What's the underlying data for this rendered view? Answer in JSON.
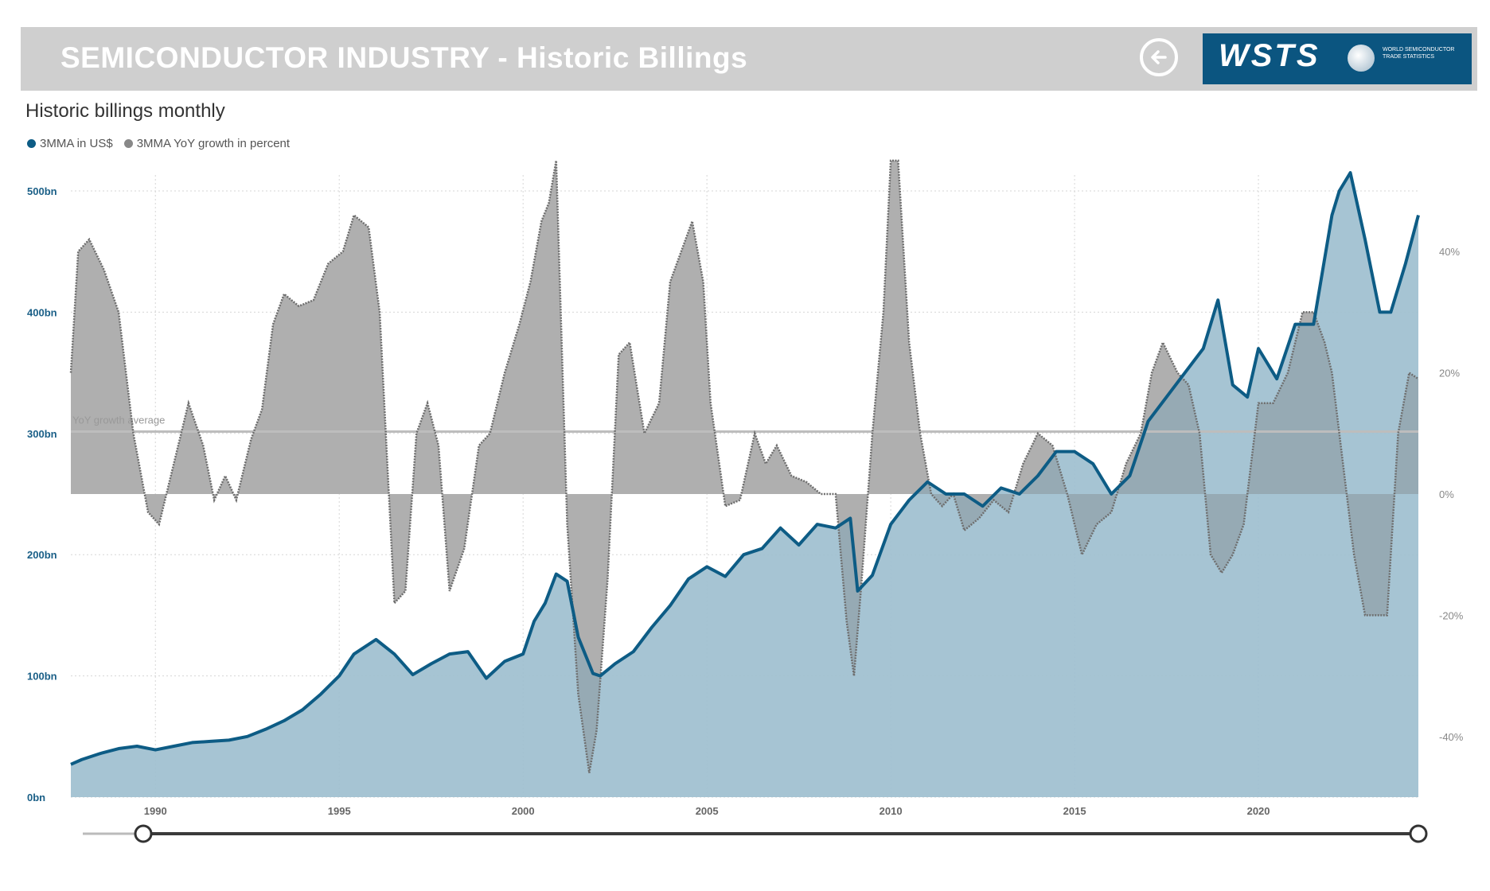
{
  "header": {
    "title": "SEMICONDUCTOR INDUSTRY - Historic Billings",
    "logo_text": "WSTS",
    "logo_subtext": "WORLD SEMICONDUCTOR TRADE STATISTICS"
  },
  "subtitle": "Historic billings monthly",
  "legend": {
    "series1": "3MMA in US$",
    "series2": "3MMA YoY growth in percent"
  },
  "colors": {
    "blue_line": "#0d5c85",
    "blue_fill": "#9ebfcf",
    "gray_line": "#6e6e6e",
    "gray_fill": "#c8c8c8",
    "average": "#bdbdbd"
  },
  "chart_data": {
    "type": "line",
    "title": "Historic billings monthly",
    "xlabel": "",
    "ylabel_left": "3MMA in US$",
    "ylabel_right": "3MMA YoY growth in percent",
    "x_range": [
      1987.7,
      2024.35
    ],
    "y_left_range": [
      0,
      500
    ],
    "y_right_range": [
      -50,
      50
    ],
    "x_ticks": [
      "1990",
      "1995",
      "2000",
      "2005",
      "2010",
      "2015",
      "2020"
    ],
    "y_left_ticks": [
      "0bn",
      "100bn",
      "200bn",
      "300bn",
      "400bn",
      "500bn"
    ],
    "y_right_ticks": [
      "-40%",
      "-20%",
      "0%",
      "20%",
      "40%"
    ],
    "annotation": "YoY growth average",
    "average_growth_pct": 10.3,
    "series": [
      {
        "name": "3MMA in US$",
        "axis": "left",
        "unit": "bn",
        "x": [
          1987.7,
          1988.0,
          1988.5,
          1989.0,
          1989.5,
          1990.0,
          1990.5,
          1991.0,
          1991.5,
          1992.0,
          1992.5,
          1993.0,
          1993.5,
          1994.0,
          1994.5,
          1995.0,
          1995.4,
          1995.6,
          1996.0,
          1996.5,
          1997.0,
          1997.5,
          1998.0,
          1998.5,
          1999.0,
          1999.5,
          2000.0,
          2000.3,
          2000.6,
          2000.9,
          2001.2,
          2001.5,
          2001.9,
          2002.1,
          2002.5,
          2003.0,
          2003.5,
          2004.0,
          2004.5,
          2005.0,
          2005.5,
          2006.0,
          2006.5,
          2007.0,
          2007.5,
          2008.0,
          2008.5,
          2008.9,
          2009.1,
          2009.5,
          2010.0,
          2010.5,
          2011.0,
          2011.5,
          2012.0,
          2012.5,
          2013.0,
          2013.5,
          2014.0,
          2014.5,
          2015.0,
          2015.5,
          2016.0,
          2016.5,
          2017.0,
          2017.5,
          2018.0,
          2018.5,
          2018.9,
          2019.3,
          2019.7,
          2020.0,
          2020.5,
          2021.0,
          2021.5,
          2022.0,
          2022.2,
          2022.5,
          2022.9,
          2023.3,
          2023.6,
          2024.0,
          2024.35
        ],
        "values": [
          27,
          31,
          36,
          40,
          42,
          39,
          42,
          45,
          46,
          47,
          50,
          56,
          63,
          72,
          85,
          100,
          118,
          122,
          130,
          118,
          101,
          110,
          118,
          120,
          98,
          112,
          118,
          145,
          160,
          184,
          178,
          132,
          102,
          100,
          110,
          120,
          140,
          158,
          180,
          190,
          182,
          200,
          205,
          222,
          208,
          225,
          222,
          230,
          170,
          183,
          225,
          245,
          260,
          250,
          250,
          240,
          255,
          250,
          265,
          285,
          285,
          275,
          250,
          265,
          310,
          330,
          350,
          370,
          410,
          340,
          330,
          370,
          345,
          390,
          390,
          480,
          500,
          515,
          460,
          400,
          400,
          440,
          480
        ]
      },
      {
        "name": "3MMA YoY growth in percent",
        "axis": "right",
        "unit": "%",
        "x": [
          1987.7,
          1987.9,
          1988.2,
          1988.6,
          1989.0,
          1989.4,
          1989.8,
          1990.1,
          1990.5,
          1990.9,
          1991.3,
          1991.6,
          1991.9,
          1992.2,
          1992.6,
          1992.9,
          1993.2,
          1993.5,
          1993.9,
          1994.3,
          1994.7,
          1995.1,
          1995.4,
          1995.8,
          1996.1,
          1996.5,
          1996.8,
          1997.1,
          1997.4,
          1997.7,
          1998.0,
          1998.4,
          1998.8,
          1999.1,
          1999.5,
          1999.9,
          2000.2,
          2000.5,
          2000.7,
          2000.9,
          2001.2,
          2001.5,
          2001.8,
          2002.0,
          2002.3,
          2002.6,
          2002.9,
          2003.3,
          2003.7,
          2004.0,
          2004.3,
          2004.6,
          2004.9,
          2005.1,
          2005.5,
          2005.9,
          2006.3,
          2006.6,
          2006.9,
          2007.3,
          2007.7,
          2008.1,
          2008.5,
          2008.8,
          2009.0,
          2009.2,
          2009.5,
          2009.8,
          2010.0,
          2010.2,
          2010.5,
          2010.8,
          2011.1,
          2011.4,
          2011.7,
          2012.0,
          2012.4,
          2012.8,
          2013.2,
          2013.6,
          2014.0,
          2014.4,
          2014.8,
          2015.2,
          2015.6,
          2016.0,
          2016.4,
          2016.8,
          2017.1,
          2017.4,
          2017.8,
          2018.1,
          2018.4,
          2018.7,
          2019.0,
          2019.3,
          2019.6,
          2020.0,
          2020.4,
          2020.8,
          2021.2,
          2021.5,
          2021.8,
          2022.0,
          2022.3,
          2022.6,
          2022.9,
          2023.2,
          2023.5,
          2023.8,
          2024.1,
          2024.35
        ],
        "values": [
          20,
          40,
          42,
          37,
          30,
          10,
          -3,
          -5,
          5,
          15,
          8,
          -1,
          3,
          -1,
          9,
          14,
          28,
          33,
          31,
          32,
          38,
          40,
          46,
          44,
          30,
          -18,
          -16,
          10,
          15,
          8,
          -16,
          -9,
          8,
          10,
          20,
          28,
          35,
          45,
          48,
          55,
          -5,
          -33,
          -46,
          -39,
          -14,
          23,
          25,
          10,
          15,
          35,
          40,
          45,
          35,
          15,
          -2,
          -1,
          10,
          5,
          8,
          3,
          2,
          0,
          0,
          -21,
          -30,
          -15,
          10,
          30,
          55,
          55,
          25,
          10,
          0,
          -2,
          0,
          -6,
          -4,
          -1,
          -3,
          5,
          10,
          8,
          0,
          -10,
          -5,
          -3,
          5,
          10,
          20,
          25,
          20,
          18,
          10,
          -10,
          -13,
          -10,
          -5,
          15,
          15,
          20,
          30,
          30,
          25,
          20,
          5,
          -10,
          -20,
          -20,
          -20,
          10,
          20,
          19
        ]
      }
    ]
  }
}
